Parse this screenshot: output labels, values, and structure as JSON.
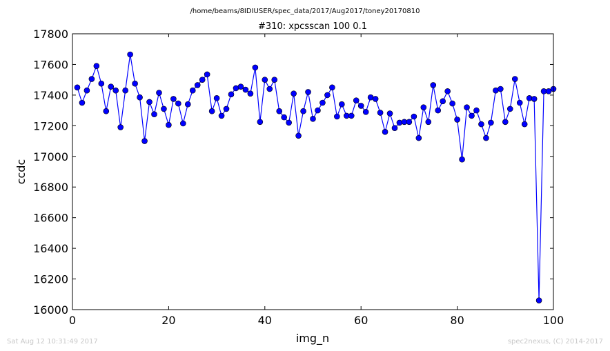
{
  "chart_data": {
    "type": "line",
    "suptitle": "/home/beams/8IDIUSER/spec_data/2017/Aug2017/toney20170810",
    "title": "#310: xpcsscan 100 0.1",
    "xlabel": "img_n",
    "ylabel": "ccdc",
    "xlim": [
      0,
      100
    ],
    "ylim": [
      16000,
      17800
    ],
    "xticks": [
      0,
      20,
      40,
      60,
      80,
      100
    ],
    "yticks": [
      16000,
      16200,
      16400,
      16600,
      16800,
      17000,
      17200,
      17400,
      17600,
      17800
    ],
    "grid": false,
    "line_color": "#0000ff",
    "marker": "circle",
    "series": [
      {
        "x": [
          1,
          2,
          3,
          4,
          5,
          6,
          7,
          8,
          9,
          10,
          11,
          12,
          13,
          14,
          15,
          16,
          17,
          18,
          19,
          20,
          21,
          22,
          23,
          24,
          25,
          26,
          27,
          28,
          29,
          30,
          31,
          32,
          33,
          34,
          35,
          36,
          37,
          38,
          39,
          40,
          41,
          42,
          43,
          44,
          45,
          46,
          47,
          48,
          49,
          50,
          51,
          52,
          53,
          54,
          55,
          56,
          57,
          58,
          59,
          60,
          61,
          62,
          63,
          64,
          65,
          66,
          67,
          68,
          69,
          70,
          71,
          72,
          73,
          74,
          75,
          76,
          77,
          78,
          79,
          80,
          81,
          82,
          83,
          84,
          85,
          86,
          87,
          88,
          89,
          90,
          91,
          92,
          93,
          94,
          95,
          96,
          97,
          98,
          99,
          100
        ],
        "y": [
          17450,
          17350,
          17430,
          17505,
          17590,
          17475,
          17295,
          17455,
          17430,
          17190,
          17430,
          17665,
          17475,
          17385,
          17100,
          17355,
          17275,
          17415,
          17310,
          17205,
          17375,
          17345,
          17215,
          17340,
          17430,
          17465,
          17500,
          17535,
          17295,
          17380,
          17265,
          17310,
          17405,
          17445,
          17455,
          17435,
          17410,
          17580,
          17225,
          17500,
          17440,
          17500,
          17295,
          17255,
          17220,
          17410,
          17135,
          17295,
          17420,
          17245,
          17300,
          17350,
          17400,
          17450,
          17260,
          17340,
          17265,
          17265,
          17365,
          17330,
          17290,
          17385,
          17375,
          17285,
          17160,
          17280,
          17185,
          17220,
          17225,
          17225,
          17260,
          17120,
          17320,
          17225,
          17465,
          17300,
          17360,
          17425,
          17345,
          17240,
          16980,
          17320,
          17265,
          17300,
          17210,
          17120,
          17220,
          17430,
          17440,
          17225,
          17310,
          17505,
          17350,
          17210,
          17380,
          17375,
          16060,
          17425,
          17425,
          17440
        ]
      }
    ]
  },
  "footer": {
    "timestamp": "Sat Aug 12 10:31:49 2017",
    "credit": "spec2nexus, (C) 2014-2017"
  }
}
